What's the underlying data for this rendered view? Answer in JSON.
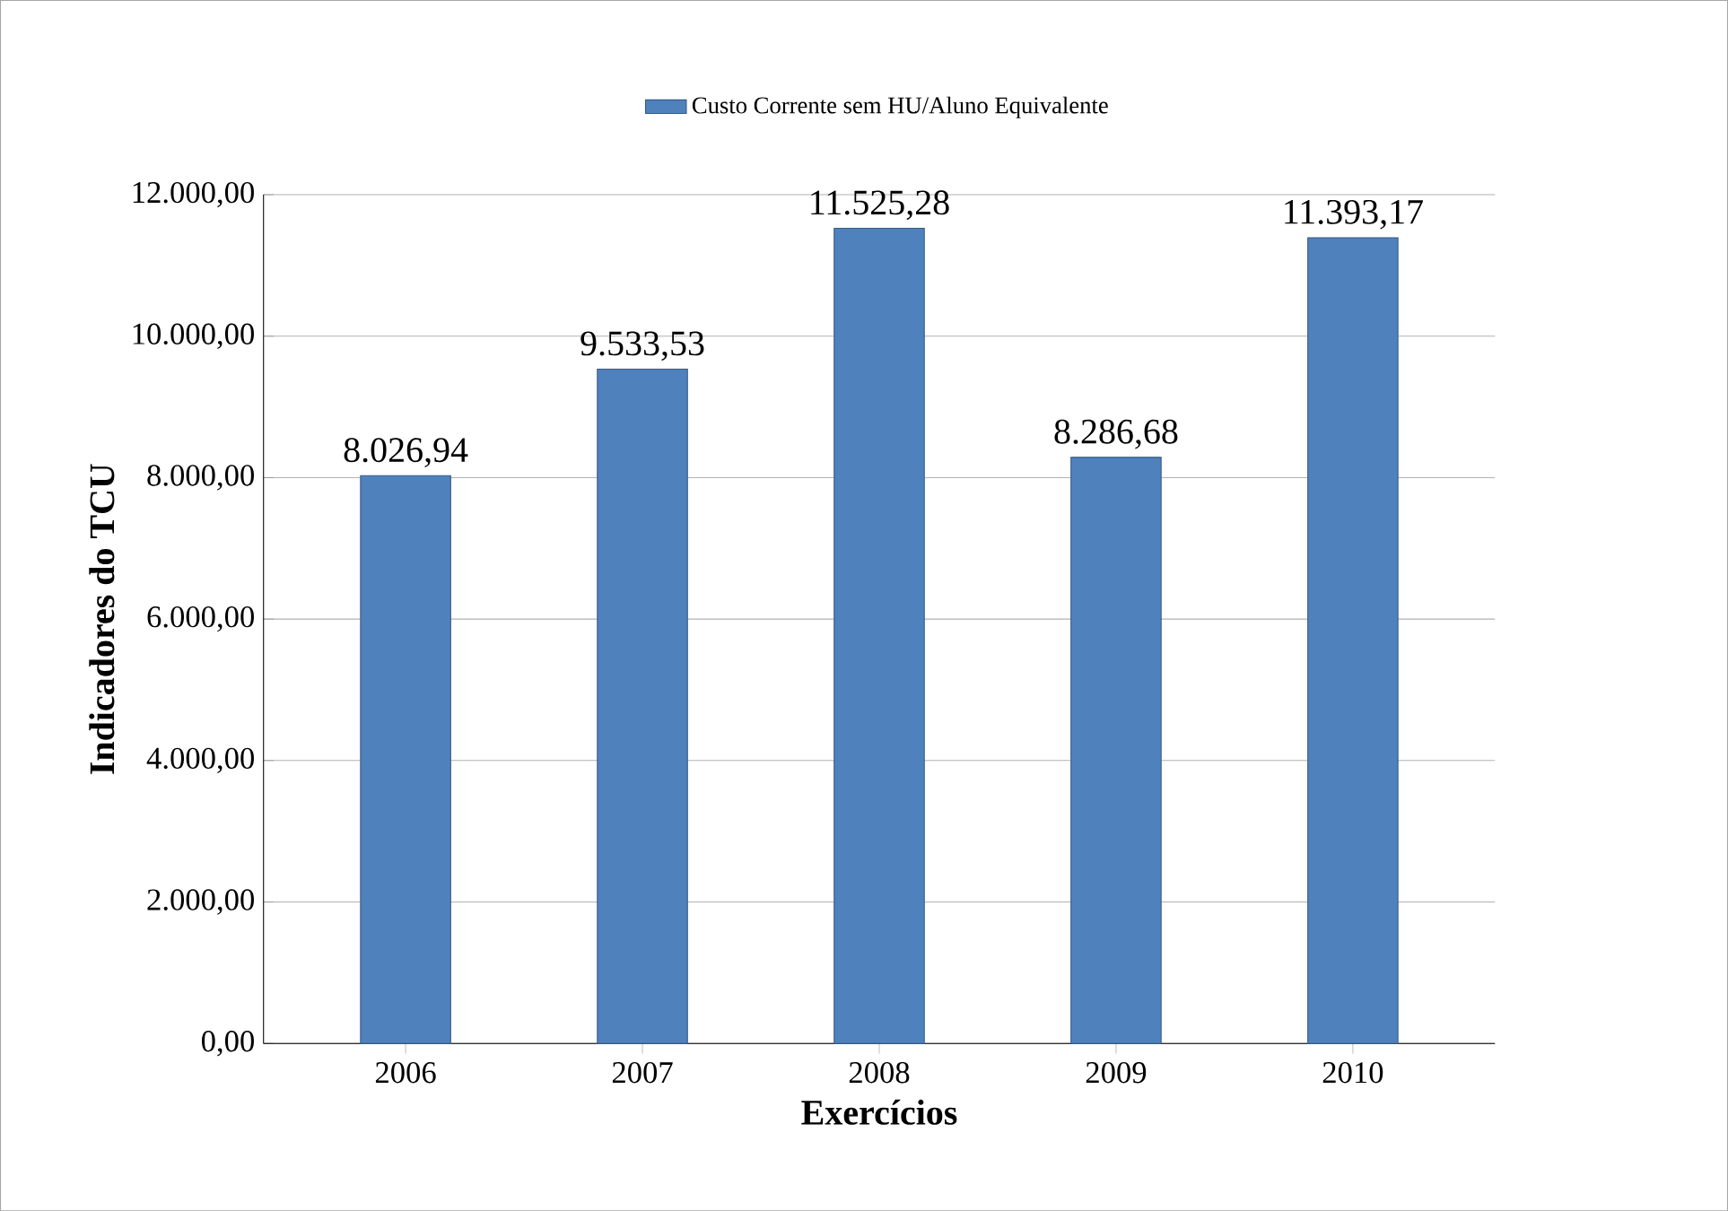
{
  "chart_data": {
    "type": "bar",
    "xlabel": "Exercícios",
    "ylabel": "Indicadores do TCU",
    "categories": [
      "2006",
      "2007",
      "2008",
      "2009",
      "2010"
    ],
    "series": [
      {
        "name": "Custo Corrente sem HU/Aluno Equivalente",
        "color": "#4f81bd",
        "values": [
          8026.94,
          9533.53,
          11525.28,
          8286.68,
          11393.17
        ],
        "value_labels": [
          "8.026,94",
          "9.533,53",
          "11.525,28",
          "8.286,68",
          "11.393,17"
        ]
      }
    ],
    "ylim": [
      0,
      12000
    ],
    "yticks": [
      {
        "value": 0,
        "label": "0,00"
      },
      {
        "value": 2000,
        "label": "2.000,00"
      },
      {
        "value": 4000,
        "label": "4.000,00"
      },
      {
        "value": 6000,
        "label": "6.000,00"
      },
      {
        "value": 8000,
        "label": "8.000,00"
      },
      {
        "value": 10000,
        "label": "10.000,00"
      },
      {
        "value": 12000,
        "label": "12.000,00"
      }
    ],
    "grid": "y",
    "legend": "top"
  }
}
